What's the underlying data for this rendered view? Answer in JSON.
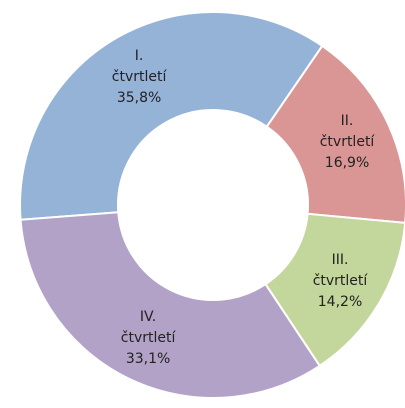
{
  "chart_data": {
    "type": "donut",
    "categories": [
      "I. čtvrtletí",
      "II. čtvrtletí",
      "III. čtvrtletí",
      "IV. čtvrtletí"
    ],
    "values": [
      35.8,
      16.9,
      14.2,
      33.1
    ],
    "value_labels": [
      "35,8%",
      "16,9%",
      "14,2%",
      "33,1%"
    ],
    "colors": [
      "#95b3d7",
      "#d99694",
      "#c3d69b",
      "#b2a2c7"
    ]
  }
}
